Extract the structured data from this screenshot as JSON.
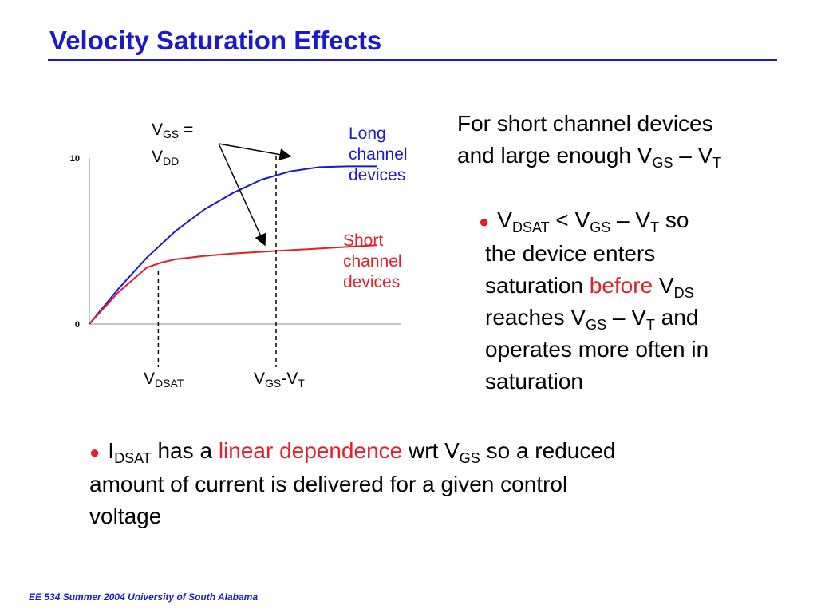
{
  "slide": {
    "title": "Velocity Saturation Effects",
    "footer": "EE 534 Summer 2004 University of South Alabama"
  },
  "colors": {
    "accent_blue": "#1a1acc",
    "highlight_red": "#e0202a"
  },
  "chart_data": {
    "type": "line",
    "ytick_labels": [
      "10",
      "0"
    ],
    "ylim": [
      0,
      10
    ],
    "xlim": [
      0,
      10
    ],
    "series": [
      {
        "name": "Long channel devices",
        "color": "#1a1acc",
        "x": [
          0,
          1,
          2,
          3,
          4,
          5,
          6,
          7,
          8,
          9,
          10
        ],
        "y": [
          0,
          2.1,
          4.0,
          5.6,
          6.9,
          7.9,
          8.7,
          9.2,
          9.45,
          9.5,
          9.5
        ]
      },
      {
        "name": "Short channel devices",
        "color": "#e0202a",
        "x": [
          0,
          1,
          2,
          2.5,
          3,
          4,
          5,
          6,
          7,
          8,
          9,
          10
        ],
        "y": [
          0,
          1.9,
          3.4,
          3.7,
          3.9,
          4.1,
          4.25,
          4.35,
          4.45,
          4.55,
          4.65,
          4.75
        ]
      }
    ],
    "vlines": [
      {
        "label": "V_DSAT",
        "x": 2.4
      },
      {
        "label": "V_GS-V_T",
        "x": 6.5
      }
    ],
    "annotations": {
      "vgs_top": "V",
      "vgs_sub": "GS",
      "vgs_eq": " =",
      "vdd_main": "V",
      "vdd_sub": "DD",
      "long_label": [
        "Long",
        "channel",
        "devices"
      ],
      "short_label": [
        "Short",
        "channel",
        "devices"
      ],
      "vdsat_main": "V",
      "vdsat_sub": "DSAT",
      "vgsvt_main1": "V",
      "vgsvt_sub1": "GS",
      "vgsvt_mid": "-V",
      "vgsvt_sub2": "T"
    }
  },
  "right_text": {
    "intro_line1": "For short channel devices",
    "intro_line2_a": "and large enough V",
    "intro_line2_sub1": "GS",
    "intro_line2_b": " – V",
    "intro_line2_sub2": "T",
    "bullet1": {
      "p1": "V",
      "s1": "DSAT",
      "p2": " < V",
      "s2": "GS",
      "p3": " – V",
      "s3": "T",
      "p4": " so",
      "line2": "the device enters",
      "line3_a": "saturation ",
      "line3_red": "before",
      "line3_b": " V",
      "line3_sub": "DS",
      "line4_a": "reaches V",
      "line4_sub1": "GS",
      "line4_b": " – V",
      "line4_sub2": "T",
      "line4_c": " and",
      "line5": "operates more often in",
      "line6": "saturation"
    }
  },
  "bottom_bullet": {
    "p1": "I",
    "s1": "DSAT",
    "p2": " has a ",
    "red": "linear dependence",
    "p3": " wrt V",
    "s2": "GS",
    "p4": " so a reduced",
    "line2": "amount of current is delivered for a given control",
    "line3": "voltage"
  }
}
